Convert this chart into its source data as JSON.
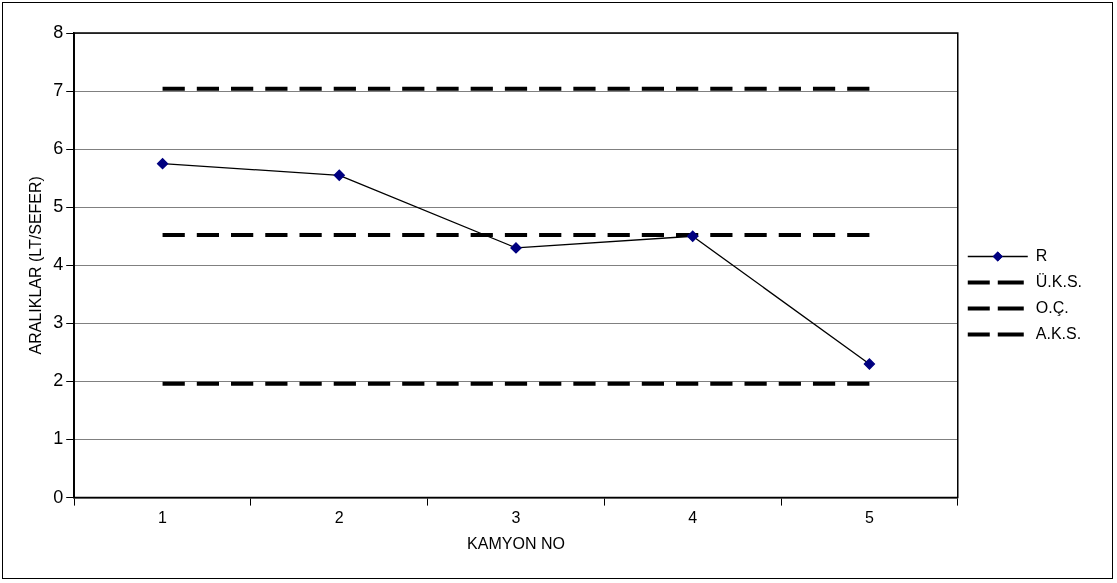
{
  "chart_data": {
    "type": "line",
    "xlabel": "KAMYON NO",
    "ylabel": "ARALIKLAR (LT/SEFER)",
    "categories": [
      "1",
      "2",
      "3",
      "4",
      "5"
    ],
    "series": [
      {
        "name": "R",
        "color": "#000080",
        "values": [
          5.75,
          5.55,
          4.3,
          4.5,
          2.3
        ],
        "marker": "diamond",
        "line_style": "solid"
      },
      {
        "name": "Ü.K.S.",
        "color": "#000000",
        "values": [
          7.04,
          7.04,
          7.04,
          7.04,
          7.04
        ],
        "marker": "none",
        "line_style": "dashed"
      },
      {
        "name": "O.Ç.",
        "color": "#000000",
        "values": [
          4.52,
          4.52,
          4.52,
          4.52,
          4.52
        ],
        "marker": "none",
        "line_style": "dashed"
      },
      {
        "name": "A.K.S.",
        "color": "#000000",
        "values": [
          1.96,
          1.96,
          1.96,
          1.96,
          1.96
        ],
        "marker": "none",
        "line_style": "dashed"
      }
    ],
    "ylim": [
      0,
      8
    ],
    "yticks": [
      0,
      1,
      2,
      3,
      4,
      5,
      6,
      7,
      8
    ],
    "grid": "y",
    "legend": "right"
  }
}
